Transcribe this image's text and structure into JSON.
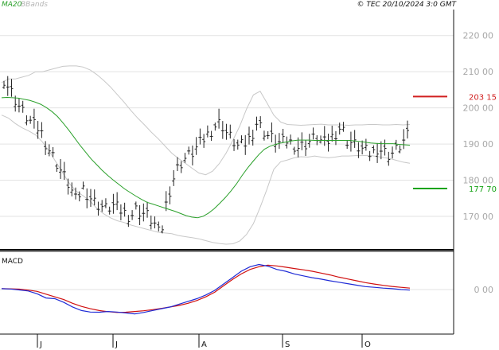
{
  "header": {
    "ma_label": "MA20",
    "bbands_label": "BBands",
    "copyright": "© TEC 20/10/2024 3:0 GMT"
  },
  "colors": {
    "price_bars": "#222222",
    "ma20": "#2aa02a",
    "bbands": "#c8c8c8",
    "level_high": "#d11f1f",
    "level_low": "#15a315",
    "macd_line": "#1f2bd6",
    "signal_line": "#d01010",
    "grid": "#e3e3e3",
    "tick_text": "#a8a8a8"
  },
  "chart_data": [
    {
      "type": "ohlc",
      "title": "",
      "x_tick_labels": [
        "J",
        "J",
        "A",
        "S",
        "O"
      ],
      "y_ticks": [
        170,
        180,
        190,
        200,
        210,
        220
      ],
      "y_tick_labels": [
        "170 00",
        "180 00",
        "190 00",
        "200 00",
        "210 00",
        "220 00"
      ],
      "ylim": [
        161.2,
        227.2
      ],
      "levels": [
        {
          "value": 203.15,
          "label": "203 15",
          "color": "red"
        },
        {
          "value": 177.7,
          "label": "177 70",
          "color": "green"
        }
      ],
      "series": [
        {
          "name": "MA20",
          "values": [
            202.8,
            202.9,
            202.8,
            202.7,
            202.4,
            202.1,
            201.6,
            201,
            200.1,
            199,
            197.6,
            195.8,
            193.9,
            191.8,
            189.7,
            187.8,
            185.9,
            184.3,
            182.7,
            181.3,
            180,
            178.8,
            177.6,
            176.6,
            175.6,
            174.7,
            173.9,
            173.4,
            172.9,
            172.4,
            171.9,
            171.4,
            170.8,
            170.2,
            169.8,
            169.6,
            170,
            170.9,
            172.1,
            173.6,
            175.2,
            177,
            179,
            181.3,
            183.4,
            185.3,
            187.1,
            188.6,
            189.4,
            189.9,
            190.3,
            190.6,
            190.9,
            191.1,
            191.1,
            191.1,
            191,
            191,
            191,
            191,
            191,
            191,
            191,
            190.9,
            190.7,
            190.5,
            190.3,
            190.2,
            190.1,
            190.1,
            190.1,
            189.9,
            189.8,
            189.7
          ]
        },
        {
          "name": "BBands upper",
          "values": [
            207,
            208,
            208,
            208.5,
            209,
            210,
            210,
            210.5,
            211,
            211.5,
            211.6,
            211.6,
            211.3,
            210.5,
            209.2,
            207.6,
            205.8,
            203.7,
            201.6,
            199.3,
            197.2,
            195.3,
            193.3,
            191.5,
            189.5,
            187.5,
            186,
            184.7,
            183.3,
            182,
            181.5,
            182.5,
            184.6,
            187.5,
            191.1,
            195,
            199.7,
            203.6,
            204.6,
            201.4,
            198,
            196.1,
            195.4,
            195.3,
            195.2,
            195.3,
            195.4,
            195.5,
            195.3,
            195.3,
            195.3,
            195.2,
            195.3,
            195.3,
            195.4,
            195.4,
            195.3,
            195.3,
            195.4,
            195.3,
            195.4
          ]
        },
        {
          "name": "BBands lower",
          "values": [
            198,
            197.2,
            195.7,
            194.5,
            193.6,
            192.5,
            190.6,
            188,
            185,
            182,
            179,
            176.9,
            175.7,
            174.2,
            172.2,
            170.7,
            169.6,
            168.8,
            168.3,
            167.6,
            167.1,
            166.6,
            166.1,
            165.6,
            165.4,
            165.2,
            164.7,
            164.4,
            164.1,
            163.8,
            163.3,
            162.8,
            162.5,
            162.3,
            162.4,
            163.2,
            165,
            168,
            172.5,
            177.5,
            183,
            185.1,
            185.6,
            186.2,
            186.5,
            186.4,
            186.7,
            186.4,
            186.2,
            186.4,
            186.7,
            186.7,
            186.8,
            186.8,
            186.9,
            186.6,
            186.3,
            186,
            185.5,
            185,
            184.7
          ]
        }
      ]
    },
    {
      "type": "line",
      "title": "MACD",
      "y_ticks": [
        0
      ],
      "y_tick_labels": [
        "0 00"
      ],
      "series": [
        {
          "name": "MACD",
          "values": [
            0.5,
            0.3,
            -0.2,
            -0.8,
            -2.3,
            -4.6,
            -5,
            -7,
            -9.5,
            -11.5,
            -12.3,
            -12.4,
            -12,
            -12.3,
            -12.8,
            -13.3,
            -12.5,
            -11.5,
            -10.5,
            -9.5,
            -8,
            -6.5,
            -5,
            -3,
            -0.5,
            3,
            6.5,
            10,
            12.5,
            13.7,
            12.8,
            11,
            10,
            8.5,
            7.5,
            6.5,
            5.7,
            4.8,
            4,
            3.2,
            2.4,
            1.6,
            1.2,
            0.8,
            0.5,
            0,
            -0.3
          ]
        },
        {
          "name": "Signal",
          "values": [
            0.5,
            0.4,
            0.2,
            -0.3,
            -1,
            -2.5,
            -4,
            -5.5,
            -7.5,
            -9.2,
            -10.5,
            -11.5,
            -12.1,
            -12.5,
            -12.4,
            -12,
            -11.6,
            -11,
            -10.3,
            -9.5,
            -8.7,
            -7.5,
            -6,
            -4,
            -1.5,
            2,
            5.5,
            8.5,
            11,
            12.5,
            13.3,
            12.9,
            12.2,
            11.5,
            10.8,
            10,
            9,
            8,
            6.8,
            5.8,
            4.8,
            3.8,
            3,
            2.3,
            1.7,
            1.2,
            0.8
          ]
        }
      ]
    }
  ]
}
